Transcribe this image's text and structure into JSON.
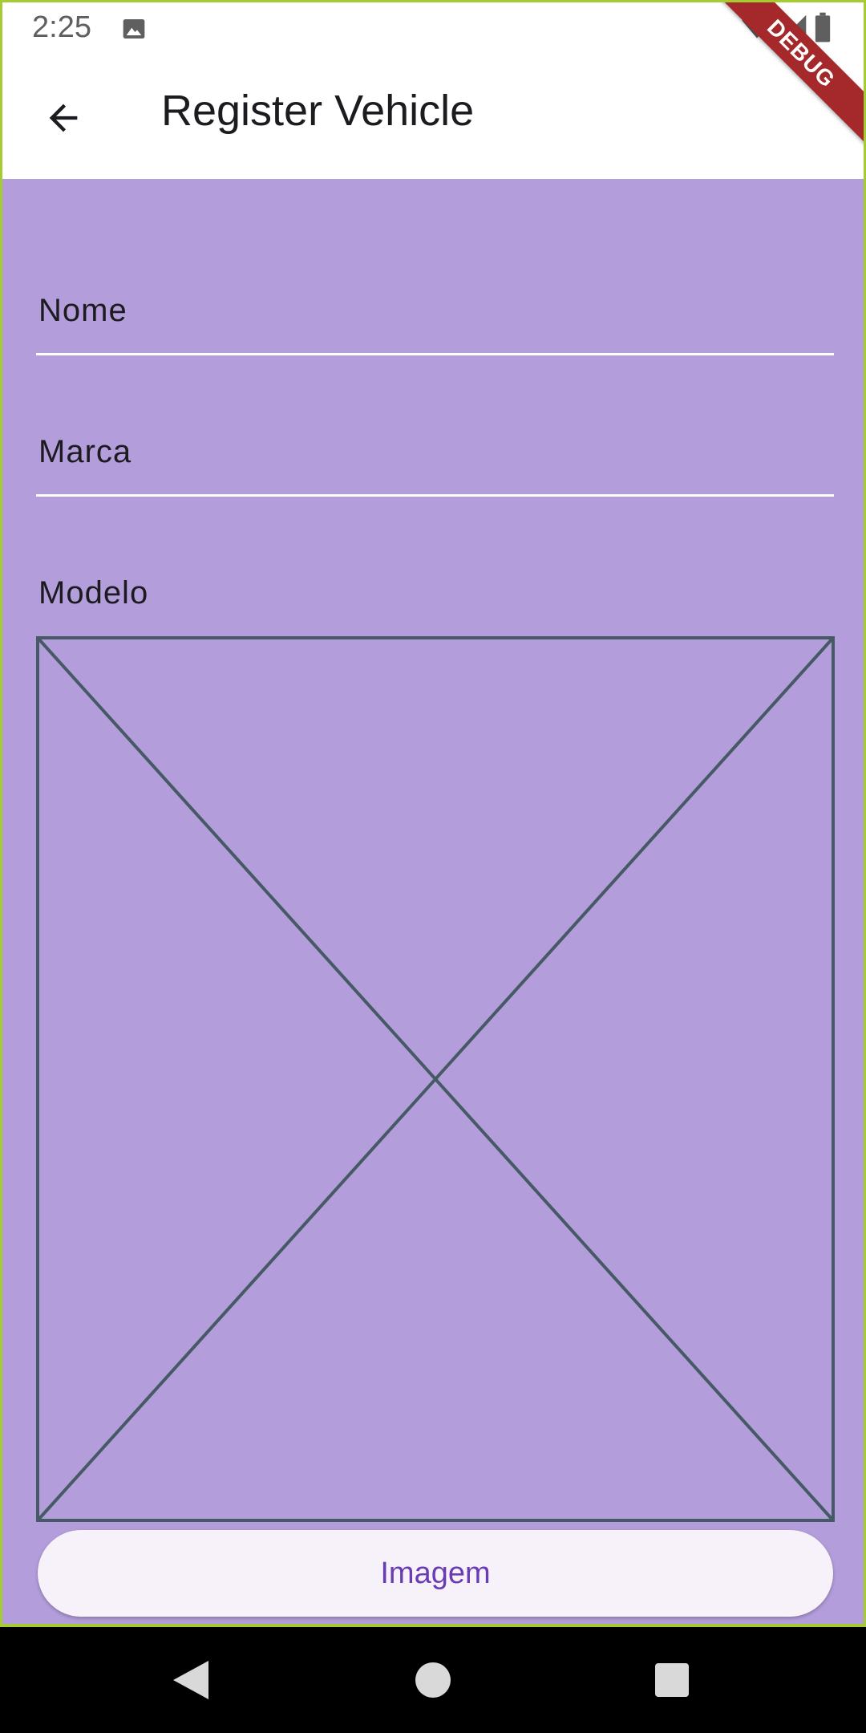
{
  "status_bar": {
    "time": "2:25",
    "icons": [
      "photo-icon",
      "wifi-icon",
      "signal-icon",
      "battery-icon"
    ]
  },
  "app_bar": {
    "back_icon": "arrow-back-icon",
    "title": "Register Vehicle"
  },
  "debug_banner": {
    "text": "DEBUG",
    "color": "#a5282b"
  },
  "form": {
    "fields": [
      {
        "label": "Nome",
        "value": ""
      },
      {
        "label": "Marca",
        "value": ""
      },
      {
        "label": "Modelo",
        "value": ""
      }
    ],
    "image_placeholder_icon": "image-placeholder-icon",
    "image_button_label": "Imagem"
  },
  "colors": {
    "background": "#b39ddb",
    "button_text": "#6a3cb4",
    "placeholder_stroke": "#455a64",
    "frame_border": "#a4cc32"
  },
  "nav_bar": {
    "icons": [
      "nav-back-icon",
      "nav-home-icon",
      "nav-recents-icon"
    ]
  }
}
